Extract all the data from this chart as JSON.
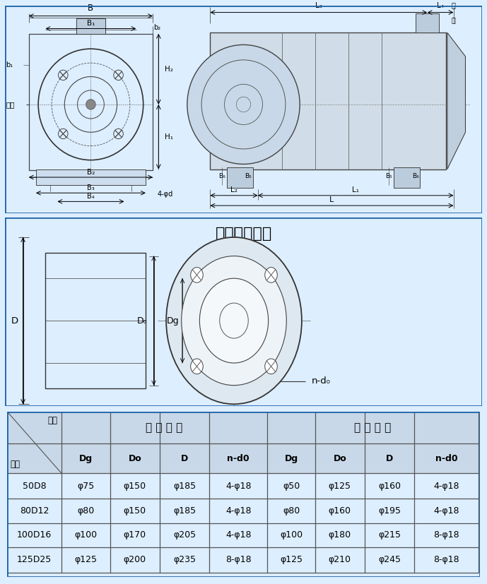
{
  "bg_color": "#ddeeff",
  "border_color": "#2266aa",
  "section1_bg": "#cce0f5",
  "section2_bg": "#eef4fb",
  "table_header_bg": "#c8d8e8",
  "table_row_bg": "#e0eaf4",
  "flange_title": "吸入吐出法兰",
  "sub_headers": [
    "Dg",
    "Do",
    "D",
    "n-d0",
    "Dg",
    "Do",
    "D",
    "n-d0"
  ],
  "table_rows": [
    [
      "50D8",
      "φ75",
      "φ150",
      "φ185",
      "4-φ18",
      "φ50",
      "φ125",
      "φ160",
      "4-φ18"
    ],
    [
      "80D12",
      "φ80",
      "φ150",
      "φ185",
      "4-φ18",
      "φ80",
      "φ160",
      "φ195",
      "4-φ18"
    ],
    [
      "100D16",
      "φ100",
      "φ170",
      "φ205",
      "4-φ18",
      "φ100",
      "φ180",
      "φ215",
      "8-φ18"
    ],
    [
      "125D25",
      "φ125",
      "φ200",
      "φ235",
      "8-φ18",
      "φ125",
      "φ210",
      "φ245",
      "8-φ18"
    ]
  ]
}
